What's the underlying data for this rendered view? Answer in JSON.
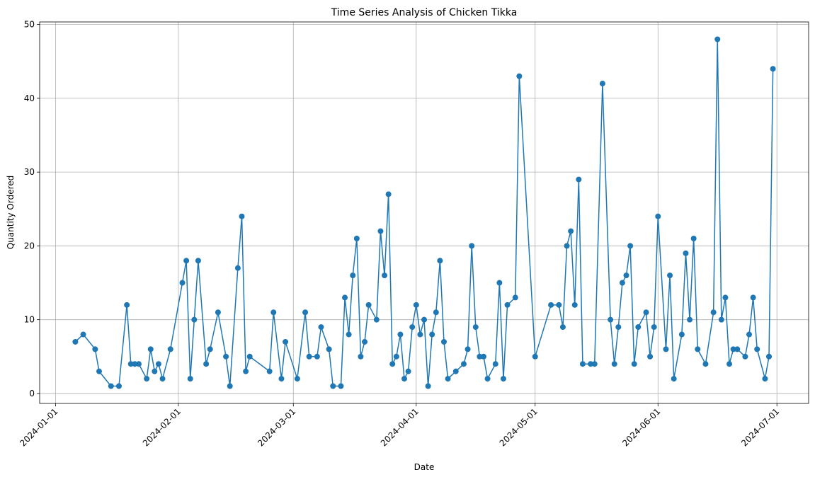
{
  "chart_data": {
    "type": "line",
    "title": "Time Series Analysis of Chicken Tikka",
    "xlabel": "Date",
    "ylabel": "Quantity Ordered",
    "color": "#1f77b4",
    "grid": true,
    "x": [
      "2024-01-06",
      "2024-01-08",
      "2024-01-11",
      "2024-01-12",
      "2024-01-15",
      "2024-01-17",
      "2024-01-19",
      "2024-01-20",
      "2024-01-21",
      "2024-01-22",
      "2024-01-24",
      "2024-01-25",
      "2024-01-26",
      "2024-01-27",
      "2024-01-28",
      "2024-01-30",
      "2024-02-02",
      "2024-02-03",
      "2024-02-04",
      "2024-02-05",
      "2024-02-06",
      "2024-02-08",
      "2024-02-09",
      "2024-02-11",
      "2024-02-13",
      "2024-02-14",
      "2024-02-16",
      "2024-02-17",
      "2024-02-18",
      "2024-02-19",
      "2024-02-24",
      "2024-02-25",
      "2024-02-27",
      "2024-02-28",
      "2024-03-02",
      "2024-03-04",
      "2024-03-05",
      "2024-03-07",
      "2024-03-08",
      "2024-03-10",
      "2024-03-11",
      "2024-03-13",
      "2024-03-14",
      "2024-03-15",
      "2024-03-16",
      "2024-03-17",
      "2024-03-18",
      "2024-03-19",
      "2024-03-20",
      "2024-03-22",
      "2024-03-23",
      "2024-03-24",
      "2024-03-25",
      "2024-03-26",
      "2024-03-27",
      "2024-03-28",
      "2024-03-29",
      "2024-03-30",
      "2024-03-31",
      "2024-04-01",
      "2024-04-02",
      "2024-04-03",
      "2024-04-04",
      "2024-04-05",
      "2024-04-06",
      "2024-04-07",
      "2024-04-08",
      "2024-04-09",
      "2024-04-11",
      "2024-04-13",
      "2024-04-14",
      "2024-04-15",
      "2024-04-16",
      "2024-04-17",
      "2024-04-18",
      "2024-04-19",
      "2024-04-21",
      "2024-04-22",
      "2024-04-23",
      "2024-04-24",
      "2024-04-26",
      "2024-04-27",
      "2024-05-01",
      "2024-05-05",
      "2024-05-07",
      "2024-05-08",
      "2024-05-09",
      "2024-05-10",
      "2024-05-11",
      "2024-05-12",
      "2024-05-13",
      "2024-05-15",
      "2024-05-16",
      "2024-05-18",
      "2024-05-20",
      "2024-05-21",
      "2024-05-22",
      "2024-05-23",
      "2024-05-24",
      "2024-05-25",
      "2024-05-26",
      "2024-05-27",
      "2024-05-29",
      "2024-05-30",
      "2024-05-31",
      "2024-06-01",
      "2024-06-03",
      "2024-06-04",
      "2024-06-05",
      "2024-06-07",
      "2024-06-08",
      "2024-06-09",
      "2024-06-10",
      "2024-06-11",
      "2024-06-13",
      "2024-06-15",
      "2024-06-16",
      "2024-06-17",
      "2024-06-18",
      "2024-06-19",
      "2024-06-20",
      "2024-06-21",
      "2024-06-23",
      "2024-06-24",
      "2024-06-25",
      "2024-06-26",
      "2024-06-28",
      "2024-06-29",
      "2024-06-30"
    ],
    "values": [
      7,
      8,
      6,
      3,
      1,
      1,
      12,
      4,
      4,
      4,
      2,
      6,
      3,
      4,
      2,
      6,
      15,
      18,
      2,
      10,
      18,
      4,
      6,
      11,
      5,
      1,
      17,
      24,
      3,
      5,
      3,
      11,
      2,
      7,
      2,
      11,
      5,
      5,
      9,
      6,
      1,
      1,
      13,
      8,
      16,
      21,
      5,
      7,
      12,
      10,
      22,
      16,
      27,
      4,
      5,
      8,
      2,
      3,
      9,
      12,
      8,
      10,
      1,
      8,
      11,
      18,
      7,
      2,
      3,
      4,
      6,
      20,
      9,
      5,
      5,
      2,
      4,
      15,
      2,
      12,
      13,
      43,
      5,
      12,
      12,
      9,
      20,
      22,
      12,
      29,
      4,
      4,
      4,
      42,
      10,
      4,
      9,
      15,
      16,
      20,
      4,
      9,
      11,
      5,
      9,
      24,
      6,
      16,
      2,
      8,
      19,
      10,
      21,
      6,
      4,
      11,
      48,
      10,
      13,
      4,
      6,
      6,
      5,
      8,
      13,
      6,
      2,
      5,
      44
    ],
    "xlim": [
      "2023-12-28",
      "2024-07-09"
    ],
    "xticks": [
      "2024-01-01",
      "2024-02-01",
      "2024-03-01",
      "2024-04-01",
      "2024-05-01",
      "2024-06-01",
      "2024-07-01"
    ],
    "ylim": [
      -1.35,
      50.35
    ],
    "yticks": [
      0,
      10,
      20,
      30,
      40,
      50
    ]
  }
}
